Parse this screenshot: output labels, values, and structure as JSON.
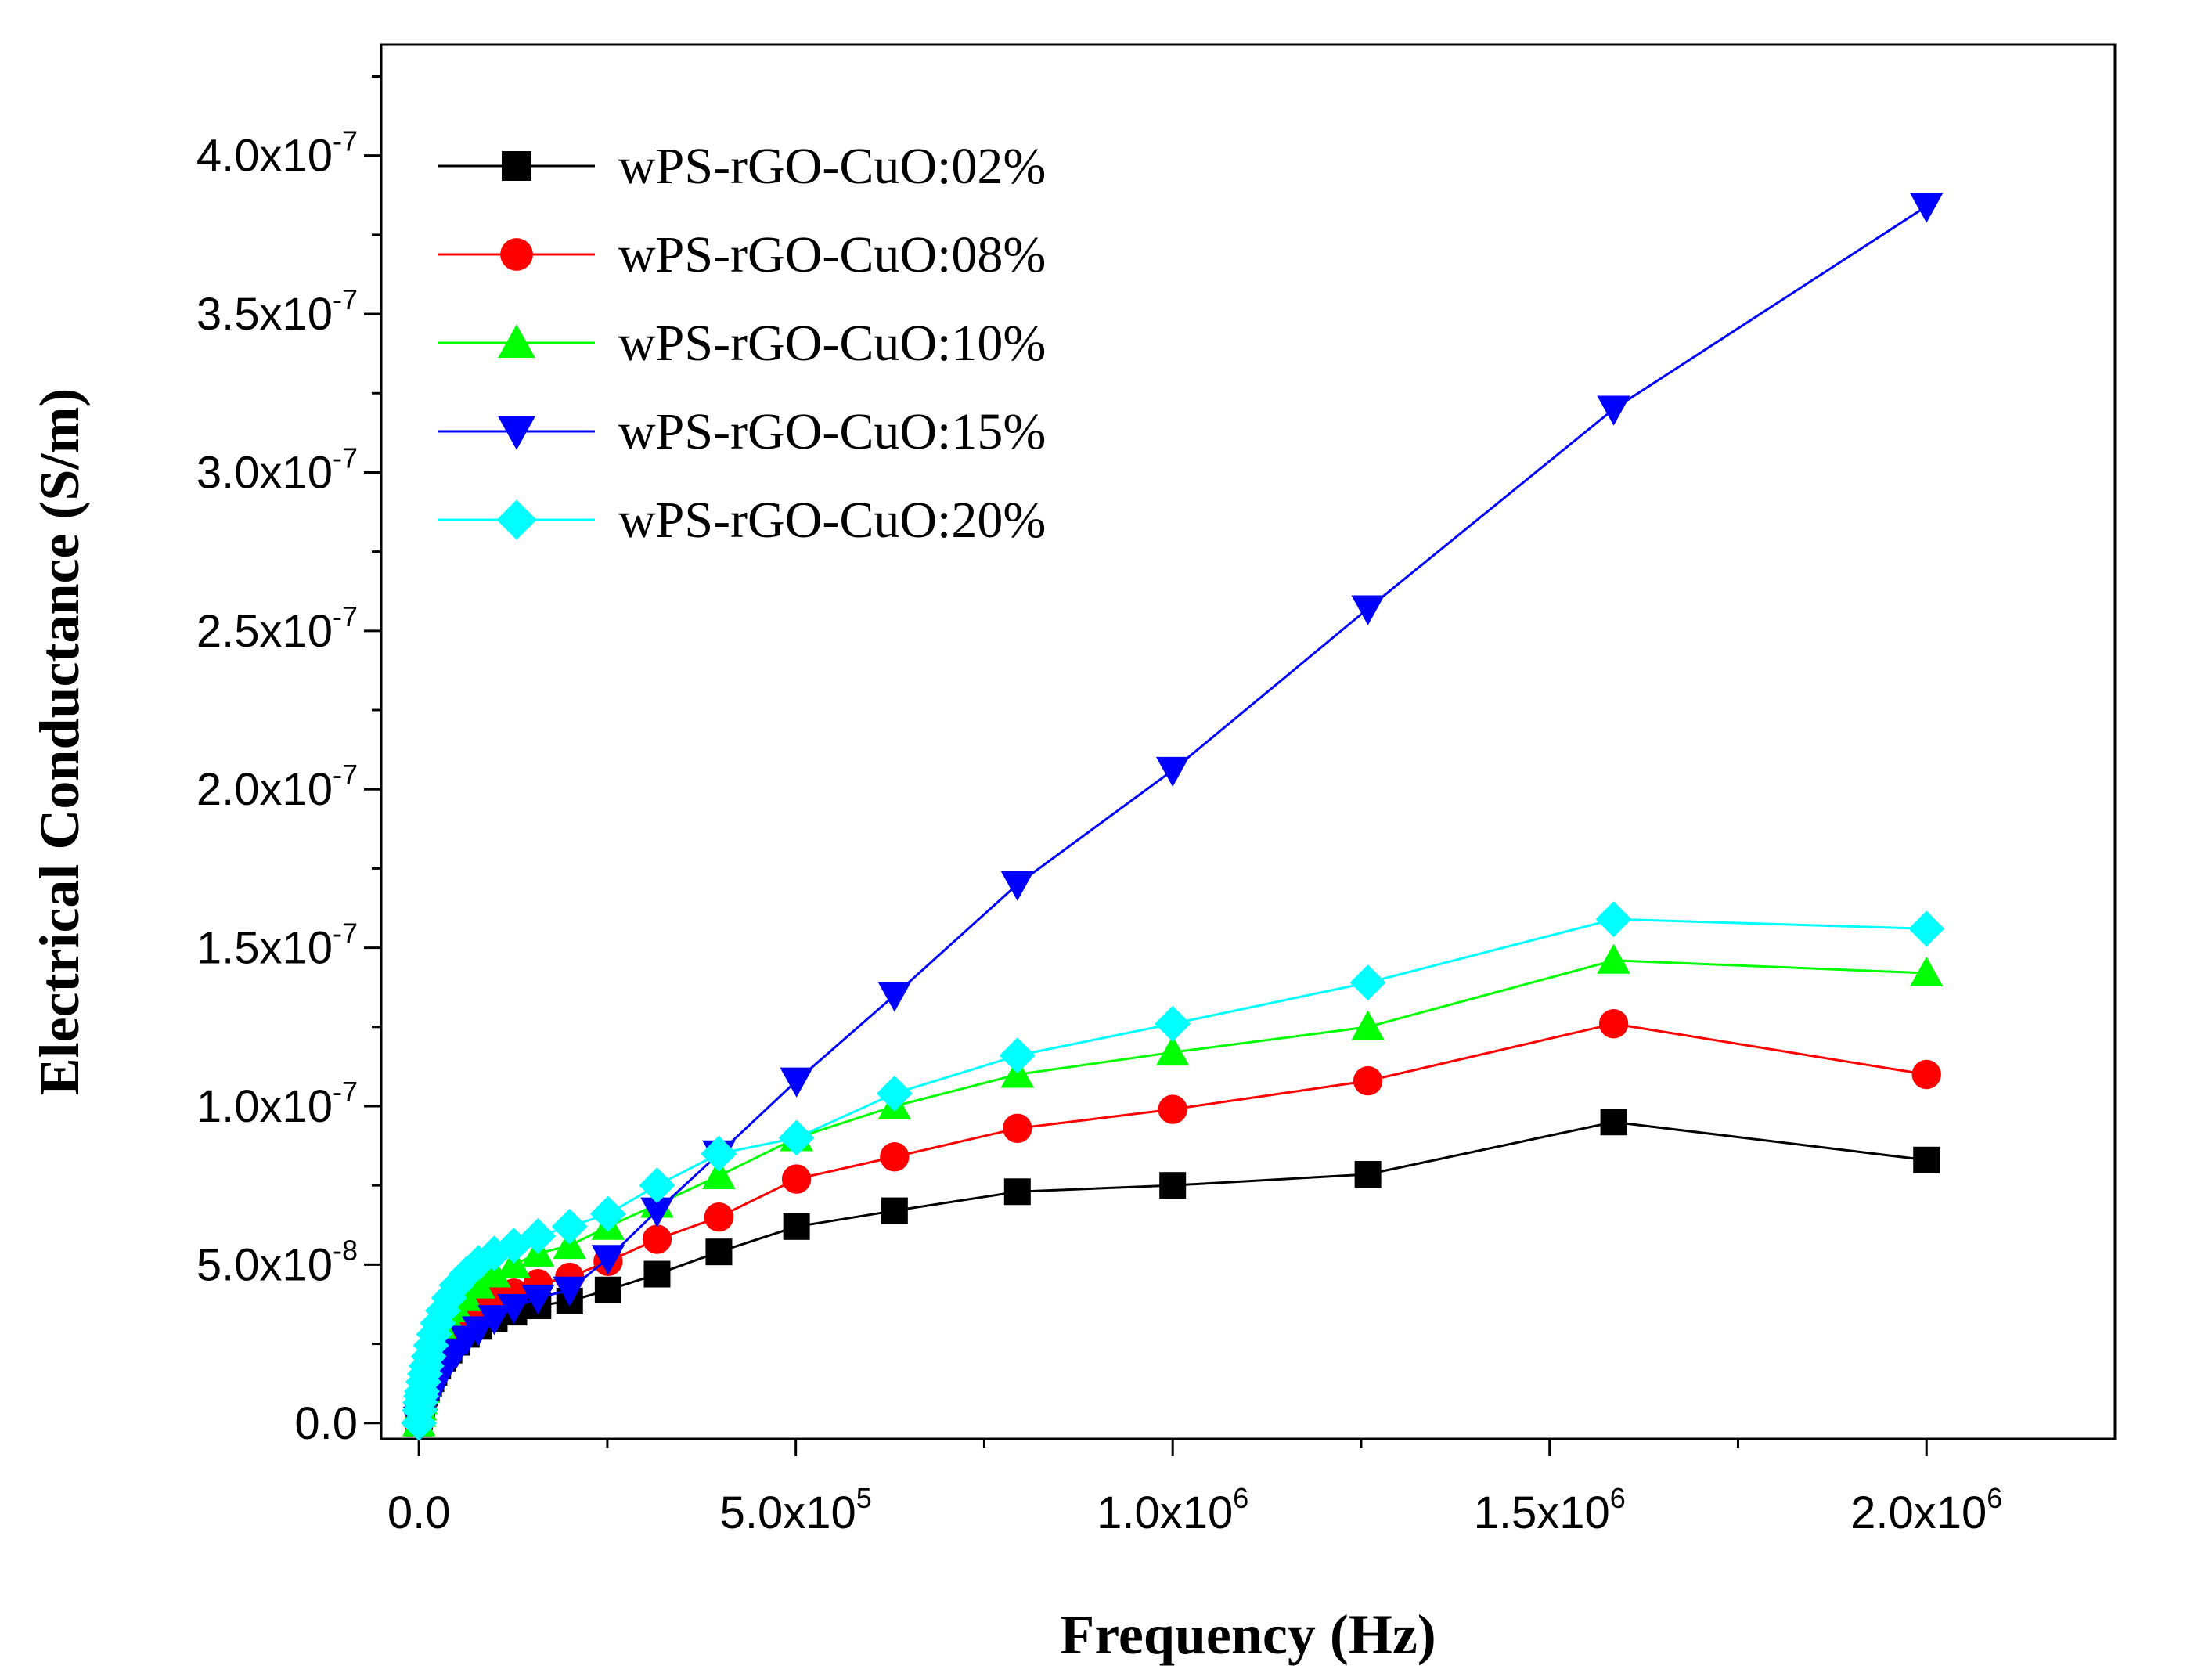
{
  "chart_data": {
    "type": "line",
    "title": "",
    "xlabel": "Frequency (Hz)",
    "ylabel": "Electrical Conductance (S/m)",
    "xlim": [
      -50000,
      2250000
    ],
    "ylim": [
      -5e-09,
      4.35e-07
    ],
    "x_ticks": [
      {
        "value": 0,
        "mantissa": "0.0",
        "exp": ""
      },
      {
        "value": 500000,
        "mantissa": "5.0x10",
        "exp": "5"
      },
      {
        "value": 1000000,
        "mantissa": "1.0x10",
        "exp": "6"
      },
      {
        "value": 1500000,
        "mantissa": "1.5x10",
        "exp": "6"
      },
      {
        "value": 2000000,
        "mantissa": "2.0x10",
        "exp": "6"
      }
    ],
    "y_ticks": [
      {
        "value": 0,
        "mantissa": "0.0",
        "exp": ""
      },
      {
        "value": 5e-08,
        "mantissa": "5.0x10",
        "exp": "-8"
      },
      {
        "value": 1e-07,
        "mantissa": "1.0x10",
        "exp": "-7"
      },
      {
        "value": 1.5e-07,
        "mantissa": "1.5x10",
        "exp": "-7"
      },
      {
        "value": 2e-07,
        "mantissa": "2.0x10",
        "exp": "-7"
      },
      {
        "value": 2.5e-07,
        "mantissa": "2.5x10",
        "exp": "-7"
      },
      {
        "value": 3e-07,
        "mantissa": "3.0x10",
        "exp": "-7"
      },
      {
        "value": 3.5e-07,
        "mantissa": "3.5x10",
        "exp": "-7"
      },
      {
        "value": 4e-07,
        "mantissa": "4.0x10",
        "exp": "-7"
      }
    ],
    "x": [
      0,
      1000,
      2000,
      3000,
      4000,
      6000,
      8000,
      10000,
      13000,
      16000,
      20000,
      25000,
      32000,
      40000,
      50000,
      63000,
      79000,
      100000,
      126000,
      158000,
      200000,
      251000,
      316000,
      398000,
      501000,
      631000,
      794000,
      1000000,
      1259000,
      1585000,
      2000000
    ],
    "series": [
      {
        "name": "wPS-rGO-CuO:02%",
        "color": "#000000",
        "marker": "square",
        "values": [
          0,
          2e-09,
          4e-09,
          5e-09,
          6e-09,
          8e-09,
          9.5e-09,
          1.1e-08,
          1.25e-08,
          1.4e-08,
          1.6e-08,
          1.8e-08,
          2.05e-08,
          2.3e-08,
          2.55e-08,
          2.8e-08,
          3.05e-08,
          3.3e-08,
          3.5e-08,
          3.7e-08,
          3.85e-08,
          4.2e-08,
          4.7e-08,
          5.4e-08,
          6.2e-08,
          6.7e-08,
          7.3e-08,
          7.5e-08,
          7.85e-08,
          9.5e-08,
          8.3e-08
        ]
      },
      {
        "name": "wPS-rGO-CuO:08%",
        "color": "#ff0000",
        "marker": "circle",
        "values": [
          0,
          2e-09,
          4e-09,
          5.5e-09,
          6.5e-09,
          8.5e-09,
          1.05e-08,
          1.2e-08,
          1.4e-08,
          1.6e-08,
          1.8e-08,
          2.05e-08,
          2.35e-08,
          2.65e-08,
          2.95e-08,
          3.25e-08,
          3.6e-08,
          3.85e-08,
          4.1e-08,
          4.4e-08,
          4.6e-08,
          5.1e-08,
          5.8e-08,
          6.5e-08,
          7.7e-08,
          8.4e-08,
          9.3e-08,
          9.9e-08,
          1.08e-07,
          1.26e-07,
          1.1e-07
        ]
      },
      {
        "name": "wPS-rGO-CuO:10%",
        "color": "#00ff00",
        "marker": "triangle-up",
        "values": [
          0,
          3e-09,
          5e-09,
          7e-09,
          8e-09,
          1.05e-08,
          1.25e-08,
          1.45e-08,
          1.7e-08,
          1.95e-08,
          2.25e-08,
          2.55e-08,
          2.9e-08,
          3.25e-08,
          3.6e-08,
          3.95e-08,
          4.35e-08,
          4.7e-08,
          5e-08,
          5.35e-08,
          5.6e-08,
          6.2e-08,
          6.9e-08,
          7.8e-08,
          9e-08,
          1e-07,
          1.1e-07,
          1.17e-07,
          1.25e-07,
          1.46e-07,
          1.42e-07
        ]
      },
      {
        "name": "wPS-rGO-CuO:15%",
        "color": "#0000ff",
        "marker": "triangle-down",
        "values": [
          0,
          1e-09,
          2e-09,
          2.5e-09,
          3e-09,
          4e-09,
          5e-09,
          6e-09,
          7.5e-09,
          9e-09,
          1.1e-08,
          1.35e-08,
          1.6e-08,
          1.95e-08,
          2.25e-08,
          2.65e-08,
          2.95e-08,
          3.3e-08,
          3.65e-08,
          3.95e-08,
          4.2e-08,
          5.2e-08,
          6.7e-08,
          8.5e-08,
          1.08e-07,
          1.35e-07,
          1.7e-07,
          2.06e-07,
          2.57e-07,
          3.2e-07,
          3.84e-07
        ]
      },
      {
        "name": "wPS-rGO-CuO:20%",
        "color": "#00ffff",
        "marker": "diamond",
        "values": [
          0,
          4e-09,
          6.5e-09,
          8.5e-09,
          1e-08,
          1.3e-08,
          1.55e-08,
          1.8e-08,
          2.1e-08,
          2.45e-08,
          2.8e-08,
          3.15e-08,
          3.55e-08,
          3.95e-08,
          4.35e-08,
          4.7e-08,
          5.05e-08,
          5.35e-08,
          5.6e-08,
          5.9e-08,
          6.2e-08,
          6.6e-08,
          7.5e-08,
          8.5e-08,
          9e-08,
          1.04e-07,
          1.16e-07,
          1.26e-07,
          1.39e-07,
          1.59e-07,
          1.56e-07
        ]
      }
    ],
    "legend_position": "top-left",
    "grid": false
  }
}
